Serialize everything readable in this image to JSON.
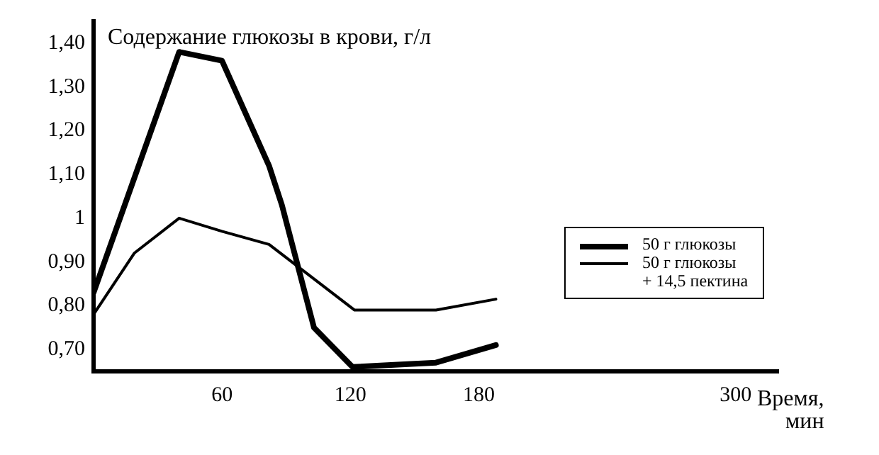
{
  "chart_data": {
    "type": "line",
    "ylabel": "Содержание глюкозы в крови, г/л",
    "xlabel": "Время, мин",
    "xlim": [
      0,
      320
    ],
    "xticks": [
      60,
      120,
      180,
      300
    ],
    "ylim": [
      0.65,
      1.45
    ],
    "yticks": [
      {
        "value": 0.7,
        "label": "0,70"
      },
      {
        "value": 0.8,
        "label": "0,80"
      },
      {
        "value": 0.9,
        "label": "0,90"
      },
      {
        "value": 1,
        "label": "1"
      },
      {
        "value": 1.1,
        "label": "1,10"
      },
      {
        "value": 1.2,
        "label": "1,20"
      },
      {
        "value": 1.3,
        "label": "1,30"
      },
      {
        "value": 1.4,
        "label": "1,40"
      }
    ],
    "grid": false,
    "legend": "right",
    "marker": "none",
    "line_style": "solid",
    "series": [
      {
        "name": "50 г глюкозы",
        "color": "#000000",
        "x": [
          0,
          40,
          60,
          82,
          88,
          103,
          121,
          160,
          188
        ],
        "values": [
          0.83,
          1.38,
          1.36,
          1.12,
          1.03,
          0.75,
          0.66,
          0.67,
          0.71
        ]
      },
      {
        "name": "50 г глюкозы\n+ 14,5 пектина",
        "color": "#000000",
        "x": [
          0,
          19,
          40,
          60,
          82,
          122,
          160,
          188
        ],
        "values": [
          0.78,
          0.92,
          1.0,
          0.97,
          0.94,
          0.79,
          0.79,
          0.815
        ]
      }
    ]
  }
}
